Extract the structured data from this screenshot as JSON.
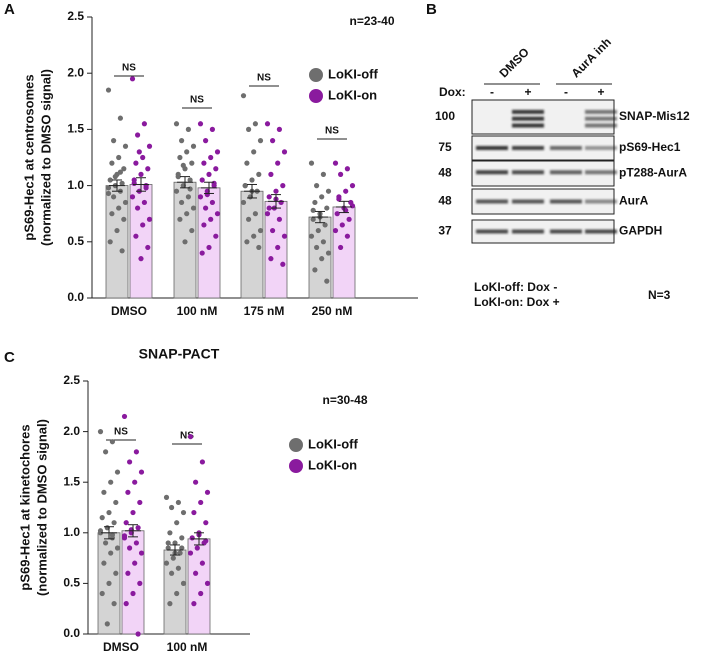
{
  "panels": [
    "A",
    "B",
    "C"
  ],
  "chart_data": [
    {
      "type": "bar",
      "ylabel": [
        "pS69-Hec1 at centrosomes",
        "(normalized to DMSO signal)"
      ],
      "annotation": "n=23-40",
      "categories": [
        "DMSO",
        "100 nM",
        "175 nM",
        "250 nM"
      ],
      "ns_labels": [
        "NS",
        "NS",
        "NS",
        "NS"
      ],
      "ylim": [
        0,
        2.5
      ],
      "yticks": [
        {
          "value": 0,
          "label": "0.0"
        },
        {
          "value": 0.5,
          "label": "0.5"
        },
        {
          "value": 1,
          "label": "1.0"
        },
        {
          "value": 1.5,
          "label": "1.5"
        },
        {
          "value": 2,
          "label": "2.0"
        },
        {
          "value": 2.5,
          "label": "2.5"
        }
      ],
      "series": [
        {
          "name": "LoKI-off",
          "color": "#6e6e6e",
          "bar_color": "#d4d4d4",
          "values": [
            1.0,
            1.03,
            0.95,
            0.72
          ],
          "errors": [
            0.05,
            0.05,
            0.06,
            0.05
          ],
          "points": [
            [
              1.85,
              1.6,
              1.4,
              1.35,
              1.25,
              1.2,
              1.15,
              1.1,
              1.05,
              1.02,
              1.0,
              0.98,
              0.95,
              0.9,
              0.85,
              0.8,
              0.75,
              0.7,
              0.6,
              0.5,
              0.42,
              1.08,
              0.93,
              1.12
            ],
            [
              1.55,
              1.5,
              1.4,
              1.35,
              1.3,
              1.25,
              1.2,
              1.15,
              1.1,
              1.05,
              1.0,
              0.95,
              0.9,
              0.85,
              0.8,
              0.75,
              0.7,
              0.6,
              0.5,
              1.08,
              0.97,
              1.18
            ],
            [
              1.8,
              1.55,
              1.5,
              1.4,
              1.3,
              1.2,
              1.1,
              1.05,
              1.0,
              0.95,
              0.9,
              0.85,
              0.75,
              0.7,
              0.6,
              0.55,
              0.5,
              0.45,
              0.95,
              1.0
            ],
            [
              1.2,
              1.1,
              1.0,
              0.95,
              0.9,
              0.85,
              0.8,
              0.75,
              0.7,
              0.65,
              0.6,
              0.55,
              0.5,
              0.45,
              0.4,
              0.35,
              0.25,
              0.15,
              0.72,
              0.78
            ]
          ]
        },
        {
          "name": "LoKI-on",
          "color": "#8a1a9e",
          "bar_color": "#f2d4f7",
          "values": [
            1.01,
            0.98,
            0.86,
            0.81
          ],
          "errors": [
            0.06,
            0.05,
            0.06,
            0.05
          ],
          "points": [
            [
              1.95,
              1.55,
              1.45,
              1.35,
              1.25,
              1.2,
              1.15,
              1.1,
              1.05,
              1.0,
              0.95,
              0.9,
              0.85,
              0.8,
              0.7,
              0.65,
              0.55,
              0.45,
              0.35,
              1.02,
              0.98,
              1.3
            ],
            [
              1.55,
              1.5,
              1.4,
              1.3,
              1.25,
              1.2,
              1.15,
              1.1,
              1.05,
              1.0,
              0.95,
              0.9,
              0.85,
              0.8,
              0.75,
              0.7,
              0.65,
              0.55,
              0.45,
              0.4,
              1.02,
              0.92
            ],
            [
              1.55,
              1.5,
              1.4,
              1.3,
              1.2,
              1.1,
              1.0,
              0.95,
              0.9,
              0.85,
              0.8,
              0.75,
              0.7,
              0.6,
              0.55,
              0.45,
              0.35,
              0.3,
              0.88,
              0.8
            ],
            [
              1.2,
              1.15,
              1.1,
              1.0,
              0.95,
              0.9,
              0.85,
              0.8,
              0.75,
              0.7,
              0.65,
              0.6,
              0.55,
              0.45,
              0.82,
              0.78,
              0.88
            ]
          ]
        }
      ]
    },
    {
      "type": "bar",
      "title": "SNAP-PACT",
      "ylabel": [
        "pS69-Hec1 at kinetochores",
        "(normalized to DMSO signal)"
      ],
      "annotation": "n=30-48",
      "categories": [
        "DMSO",
        "100 nM"
      ],
      "ns_labels": [
        "NS",
        "NS"
      ],
      "ylim": [
        0,
        2.5
      ],
      "yticks": [
        {
          "value": 0,
          "label": "0.0"
        },
        {
          "value": 0.5,
          "label": "0.5"
        },
        {
          "value": 1,
          "label": "1.0"
        },
        {
          "value": 1.5,
          "label": "1.5"
        },
        {
          "value": 2,
          "label": "2.0"
        },
        {
          "value": 2.5,
          "label": "2.5"
        }
      ],
      "series": [
        {
          "name": "LoKI-off",
          "color": "#6e6e6e",
          "bar_color": "#d4d4d4",
          "values": [
            1.0,
            0.83
          ],
          "errors": [
            0.06,
            0.05
          ],
          "points": [
            [
              2.0,
              1.9,
              1.8,
              1.6,
              1.5,
              1.4,
              1.3,
              1.2,
              1.15,
              1.1,
              1.05,
              1.0,
              0.95,
              0.9,
              0.85,
              0.8,
              0.7,
              0.6,
              0.5,
              0.4,
              0.3,
              0.1,
              1.02,
              0.98
            ],
            [
              1.35,
              1.3,
              1.25,
              1.2,
              1.1,
              1.0,
              0.95,
              0.9,
              0.85,
              0.8,
              0.75,
              0.7,
              0.65,
              0.6,
              0.5,
              0.4,
              0.3,
              0.85,
              0.8,
              0.9
            ]
          ]
        },
        {
          "name": "LoKI-on",
          "color": "#8a1a9e",
          "bar_color": "#f2d4f7",
          "values": [
            1.02,
            0.94
          ],
          "errors": [
            0.06,
            0.06
          ],
          "points": [
            [
              2.15,
              1.8,
              1.7,
              1.6,
              1.5,
              1.4,
              1.3,
              1.2,
              1.1,
              1.05,
              1.0,
              0.95,
              0.9,
              0.85,
              0.8,
              0.7,
              0.6,
              0.5,
              0.4,
              0.3,
              0.0,
              1.03,
              0.97
            ],
            [
              1.95,
              1.7,
              1.5,
              1.4,
              1.3,
              1.2,
              1.1,
              1.0,
              0.95,
              0.9,
              0.85,
              0.8,
              0.7,
              0.6,
              0.5,
              0.4,
              0.3,
              0.92,
              0.98
            ]
          ]
        }
      ]
    }
  ],
  "blot": {
    "groups": [
      "DMSO",
      "AurA inh"
    ],
    "dox_label": "Dox:",
    "dox": [
      "-",
      "+",
      "-",
      "+"
    ],
    "rows": [
      {
        "marker": 100,
        "label": "SNAP-Mis12"
      },
      {
        "marker": 75,
        "label": "pS69-Hec1"
      },
      {
        "marker": 48,
        "label": "pT288-AurA"
      },
      {
        "marker": 48,
        "label": "AurA"
      },
      {
        "marker": 37,
        "label": "GAPDH"
      }
    ],
    "notes": [
      "LoKI-off: Dox -",
      "LoKI-on: Dox +"
    ],
    "replicates": "N=3"
  }
}
